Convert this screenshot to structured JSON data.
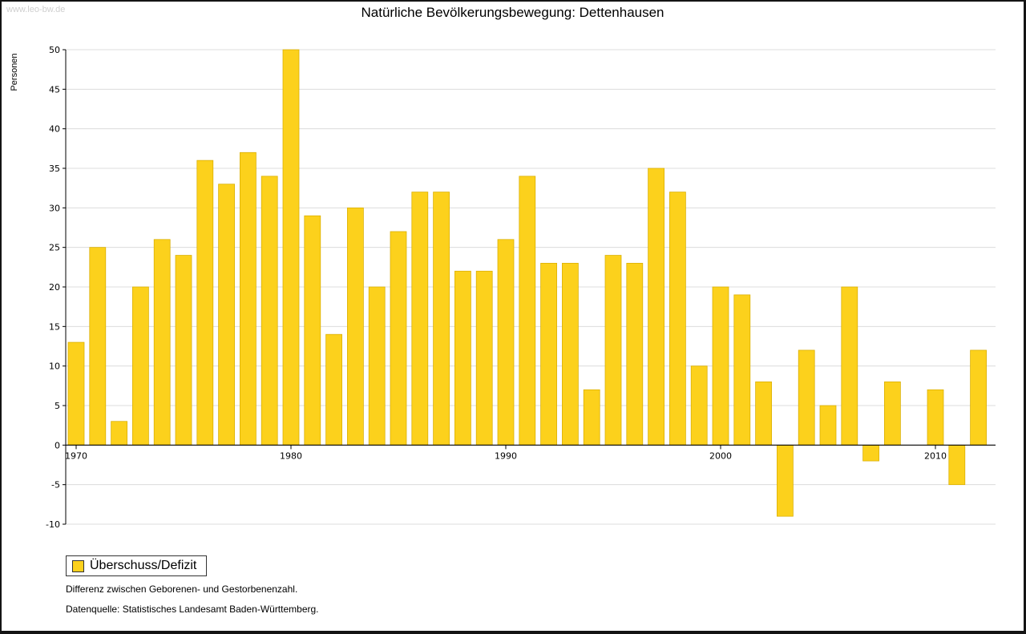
{
  "site": {
    "watermark": "www.leo-bw.de"
  },
  "chart_data": {
    "type": "bar",
    "title": "Natürliche Bevölkerungsbewegung: Dettenhausen",
    "ylabel": "Personen",
    "xlabel": "",
    "ylim": [
      -10,
      50
    ],
    "y_tick_step": 5,
    "grid": true,
    "legend_position": "bottom-left",
    "legend_label": "Überschuss/Defizit",
    "bar_color": "#FCD11C",
    "bar_stroke": "#D9AE00",
    "x": [
      1970,
      1971,
      1972,
      1973,
      1974,
      1975,
      1976,
      1977,
      1978,
      1979,
      1980,
      1981,
      1982,
      1983,
      1984,
      1985,
      1986,
      1987,
      1988,
      1989,
      1990,
      1991,
      1992,
      1993,
      1994,
      1995,
      1996,
      1997,
      1998,
      1999,
      2000,
      2001,
      2002,
      2003,
      2004,
      2005,
      2006,
      2007,
      2008,
      2009,
      2010,
      2011,
      2012
    ],
    "values": [
      13,
      25,
      3,
      20,
      26,
      24,
      36,
      33,
      37,
      34,
      50,
      29,
      14,
      30,
      20,
      27,
      32,
      32,
      22,
      22,
      26,
      34,
      23,
      23,
      7,
      24,
      23,
      35,
      32,
      10,
      20,
      19,
      8,
      -9,
      12,
      5,
      20,
      -2,
      8,
      0,
      7,
      -5,
      12
    ]
  },
  "notes": {
    "line1": "Differenz zwischen Geborenen- und Gestorbenenzahl.",
    "line2": "Datenquelle: Statistisches Landesamt Baden-Württemberg."
  }
}
